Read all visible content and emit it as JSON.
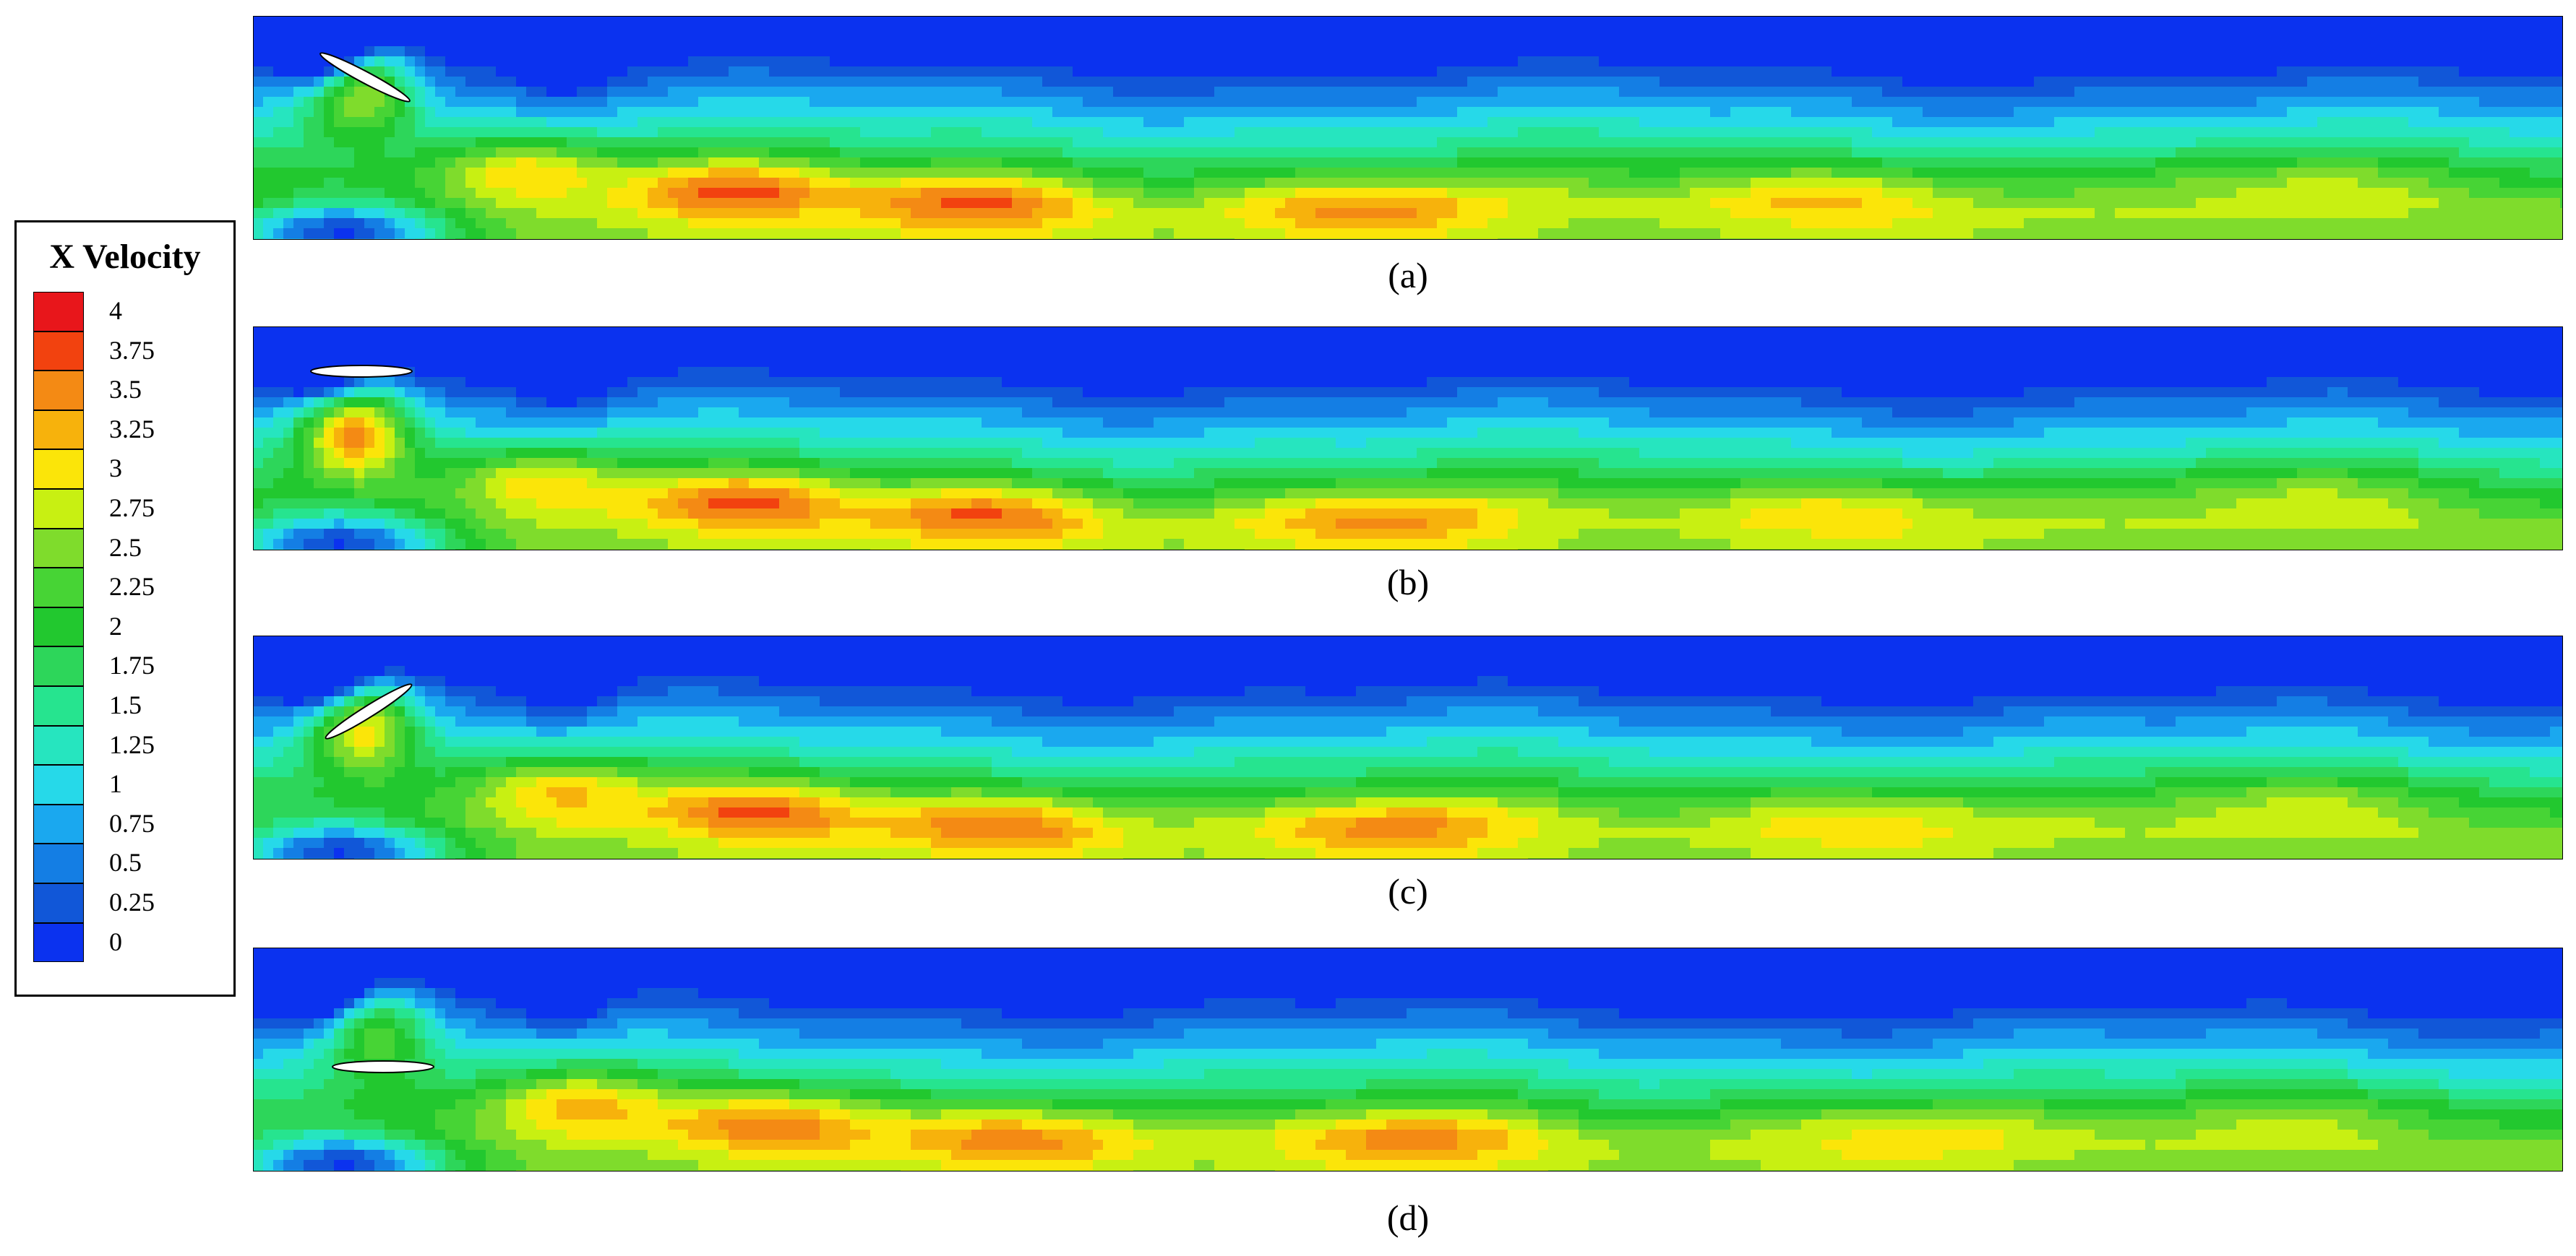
{
  "chart_data": {
    "type": "heatmap",
    "title": "",
    "colorbar": {
      "title": "X Velocity",
      "ticks": [
        "4",
        "3.75",
        "3.5",
        "3.25",
        "3",
        "2.75",
        "2.5",
        "2.25",
        "2",
        "1.75",
        "1.5",
        "1.25",
        "1",
        "0.75",
        "0.5",
        "0.25",
        "0"
      ],
      "levels": [
        4,
        3.75,
        3.5,
        3.25,
        3,
        2.75,
        2.5,
        2.25,
        2,
        1.75,
        1.5,
        1.25,
        1,
        0.75,
        0.5,
        0.25,
        0
      ],
      "colors": [
        "#e8161b",
        "#f2420f",
        "#f48a14",
        "#f7b20c",
        "#fbe509",
        "#c8f012",
        "#7fdc2c",
        "#47d435",
        "#22c82f",
        "#2dd65a",
        "#26e48f",
        "#26e5bf",
        "#26d9e9",
        "#1aa8ef",
        "#147ee4",
        "#1157d8",
        "#0b32ef"
      ]
    },
    "panels": [
      {
        "label": "(a)",
        "foil": "pitched-down"
      },
      {
        "label": "(b)",
        "foil": "horizontal-top"
      },
      {
        "label": "(c)",
        "foil": "pitched-up"
      },
      {
        "label": "(d)",
        "foil": "horizontal-bottom"
      }
    ]
  }
}
